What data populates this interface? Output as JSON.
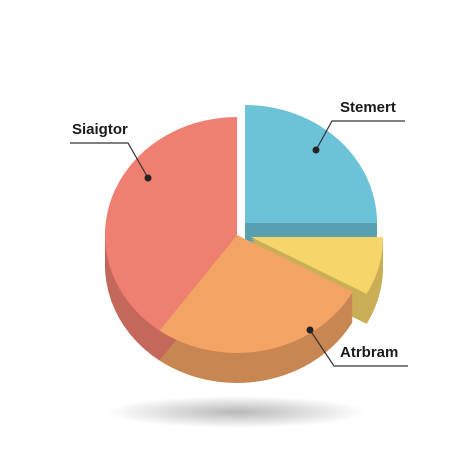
{
  "chart_data": {
    "type": "pie",
    "categories": [
      "Stemert",
      null,
      "Atrbram",
      "Siaigtor"
    ],
    "values": [
      25,
      8,
      27,
      40
    ],
    "colors": [
      "#6cc3d8",
      "#f6d56a",
      "#f3a464",
      "#ef7f70"
    ]
  }
}
